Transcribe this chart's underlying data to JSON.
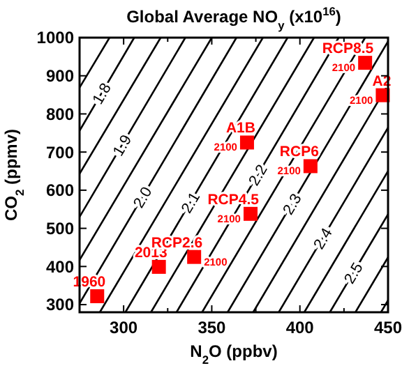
{
  "chart_data": {
    "type": "line",
    "title": "Global Average NO$_{y}$ (x10$^{16}$)",
    "xlabel": "N$_{2}$O (ppbv)",
    "ylabel": "CO$_{2}$ (ppmv)",
    "xlim": [
      275,
      450
    ],
    "ylim": [
      280,
      1000
    ],
    "xticks": [
      300,
      {
        "value": 325,
        "label": null
      },
      350,
      {
        "value": 375,
        "label": null
      },
      400,
      {
        "value": 425,
        "label": null
      },
      450
    ],
    "yticks": [
      300,
      400,
      500,
      600,
      700,
      800,
      900,
      1000
    ],
    "grid": false,
    "line_style": "solid",
    "series": [
      {
        "color": "#000000",
        "x": [
          275,
          292
        ],
        "values": [
          869,
          1000
        ]
      },
      {
        "name": "1.8",
        "color": "#000000",
        "x": [
          275,
          306
        ],
        "values": [
          756,
          1000
        ]
      },
      {
        "color": "#000000",
        "x": [
          275,
          321
        ],
        "values": [
          643,
          1000
        ]
      },
      {
        "name": "1.9",
        "color": "#000000",
        "x": [
          275,
          335
        ],
        "values": [
          530,
          1000
        ]
      },
      {
        "color": "#000000",
        "x": [
          275,
          350
        ],
        "values": [
          417,
          1000
        ]
      },
      {
        "name": "2.0",
        "color": "#000000",
        "x": [
          275,
          364
        ],
        "values": [
          303,
          1000
        ]
      },
      {
        "color": "#000000",
        "x": [
          286.5,
          379
        ],
        "values": [
          280,
          1000
        ]
      },
      {
        "name": "2.1",
        "color": "#000000",
        "x": [
          301,
          393
        ],
        "values": [
          280,
          1000
        ]
      },
      {
        "color": "#000000",
        "x": [
          315.5,
          408
        ],
        "values": [
          280,
          1000
        ]
      },
      {
        "name": "2.2",
        "color": "#000000",
        "x": [
          330,
          422
        ],
        "values": [
          280,
          1000
        ]
      },
      {
        "color": "#000000",
        "x": [
          344.5,
          437
        ],
        "values": [
          280,
          1000
        ]
      },
      {
        "name": "2.3",
        "color": "#000000",
        "x": [
          359,
          450
        ],
        "values": [
          280,
          990
        ]
      },
      {
        "color": "#000000",
        "x": [
          373.5,
          450
        ],
        "values": [
          280,
          877
        ]
      },
      {
        "name": "2.4",
        "color": "#000000",
        "x": [
          388,
          450
        ],
        "values": [
          280,
          764
        ]
      },
      {
        "color": "#000000",
        "x": [
          402.5,
          450
        ],
        "values": [
          280,
          650
        ]
      },
      {
        "name": "2.5",
        "color": "#000000",
        "x": [
          417,
          450
        ],
        "values": [
          280,
          537
        ]
      },
      {
        "color": "#000000",
        "x": [
          431.5,
          450
        ],
        "values": [
          280,
          424
        ]
      },
      {
        "color": "#000000",
        "x": [
          446,
          450
        ],
        "values": [
          280,
          311
        ]
      },
      {
        "type": "scatter",
        "marker": "square",
        "color": "#ff0000",
        "x": [
          285,
          320
        ],
        "values": [
          322,
          399
        ]
      },
      {
        "type": "scatter",
        "marker": "square",
        "color": "#ff0000",
        "x": [
          340,
          372,
          370,
          406,
          437,
          447
        ],
        "values": [
          425,
          538,
          725,
          663,
          934,
          849
        ]
      }
    ],
    "annotations": [
      {
        "text": "1960",
        "x": 285,
        "y": 322
      },
      {
        "text": "2013",
        "x": 320,
        "y": 399
      },
      {
        "text": "RCP2.6",
        "x": 340,
        "y": 425
      },
      {
        "text": "RCP4.5",
        "x": 372,
        "y": 538
      },
      {
        "text": "A1B",
        "x": 370,
        "y": 725
      },
      {
        "text": "RCP6",
        "x": 406,
        "y": 663
      },
      {
        "text": "RCP8.5",
        "x": 437,
        "y": 934
      },
      {
        "text": "A2",
        "x": 447,
        "y": 849
      },
      {
        "text": "2100",
        "x": 340,
        "y": 425
      },
      {
        "text": "2100",
        "x": 372,
        "y": 538
      },
      {
        "text": "2100",
        "x": 370,
        "y": 725
      },
      {
        "text": "2100",
        "x": 406,
        "y": 663
      },
      {
        "text": "2100",
        "x": 437,
        "y": 934
      },
      {
        "text": "2100",
        "x": 447,
        "y": 849
      }
    ]
  }
}
